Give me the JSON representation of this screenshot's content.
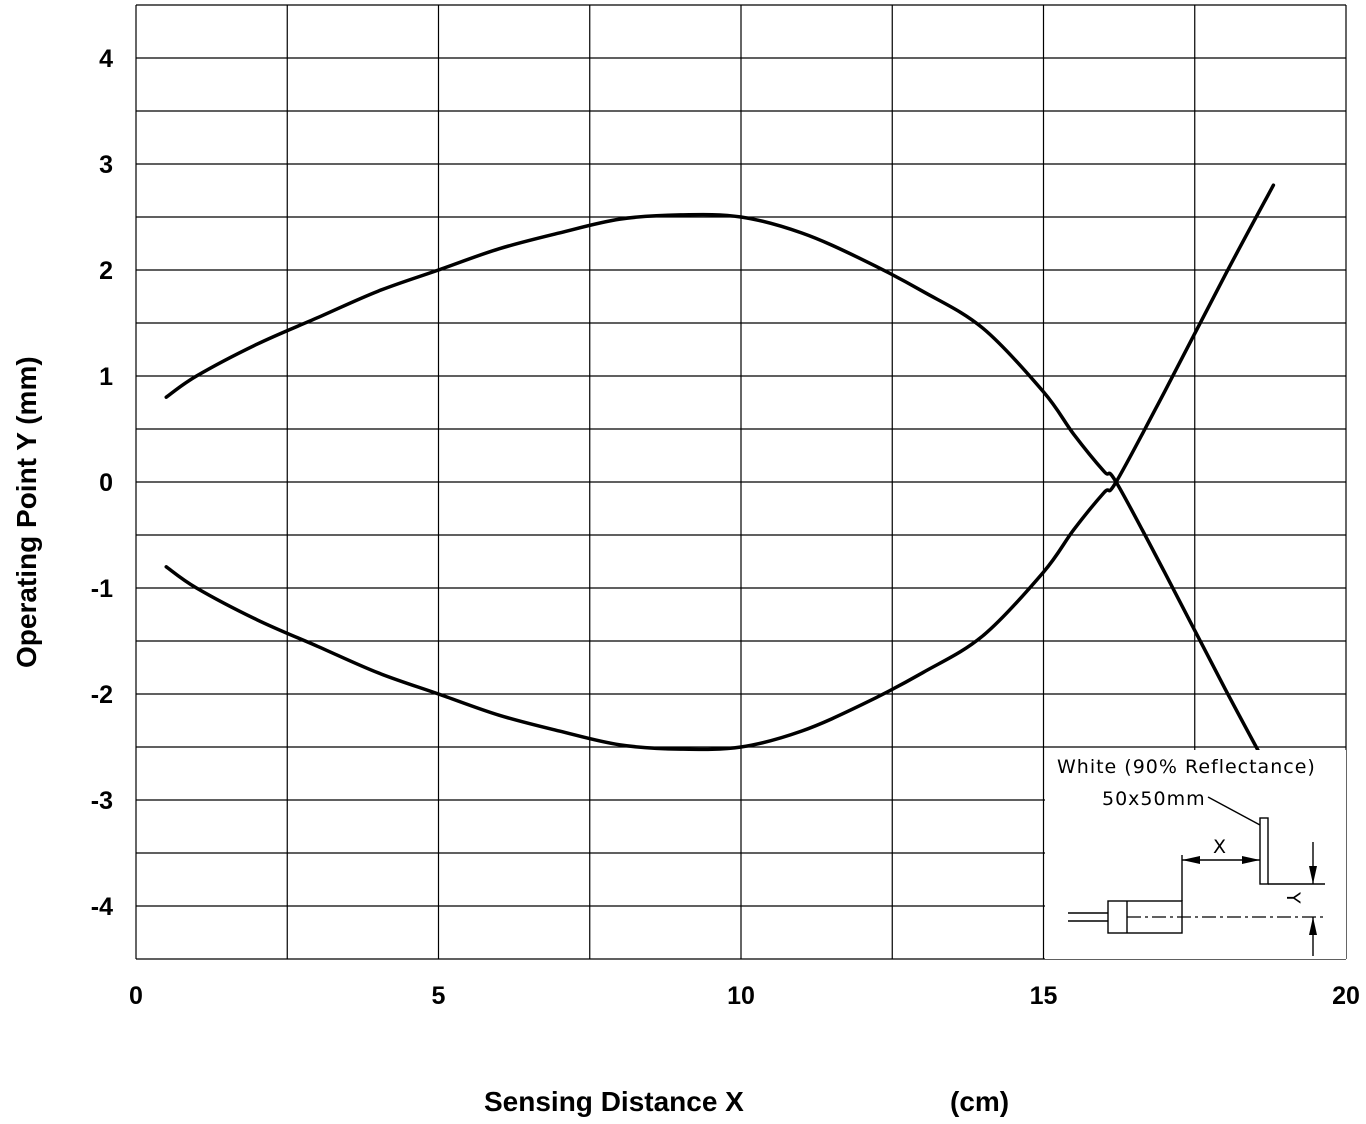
{
  "chart_data": {
    "type": "line",
    "xlabel": "Sensing Distance  X",
    "xunit": "(cm)",
    "ylabel": "Operating Point  Y   (mm)",
    "xlim": [
      0,
      20
    ],
    "ylim": [
      -4.5,
      4.5
    ],
    "x_ticks": [
      0,
      5,
      10,
      15,
      20
    ],
    "y_ticks": [
      4,
      3,
      2,
      1,
      0,
      -1,
      -2,
      -3,
      -4
    ],
    "grid": true,
    "series": [
      {
        "x": [
          0.5,
          1,
          2,
          3,
          4,
          5,
          6,
          7,
          8,
          9,
          10,
          11,
          12,
          13,
          14,
          15,
          15.5,
          16,
          16.2,
          17,
          18,
          18.8
        ],
        "values": [
          0.8,
          1.0,
          1.3,
          1.55,
          1.8,
          2.0,
          2.2,
          2.35,
          2.48,
          2.52,
          2.5,
          2.35,
          2.1,
          1.8,
          1.45,
          0.85,
          0.45,
          0.1,
          0.0,
          -0.85,
          -1.95,
          -2.8
        ]
      },
      {
        "x": [
          0.5,
          1,
          2,
          3,
          4,
          5,
          6,
          7,
          8,
          9,
          10,
          11,
          12,
          13,
          14,
          15,
          15.5,
          16,
          16.2,
          17,
          18,
          18.8
        ],
        "values": [
          -0.8,
          -1.0,
          -1.3,
          -1.55,
          -1.8,
          -2.0,
          -2.2,
          -2.35,
          -2.48,
          -2.52,
          -2.5,
          -2.35,
          -2.1,
          -1.8,
          -1.45,
          -0.85,
          -0.45,
          -0.1,
          0.0,
          0.85,
          1.95,
          2.8
        ]
      }
    ],
    "inset": {
      "target_label": "White (90% Reflectance)",
      "target_size": "50x50mm",
      "x_marker": "X",
      "y_marker": "Y"
    }
  }
}
